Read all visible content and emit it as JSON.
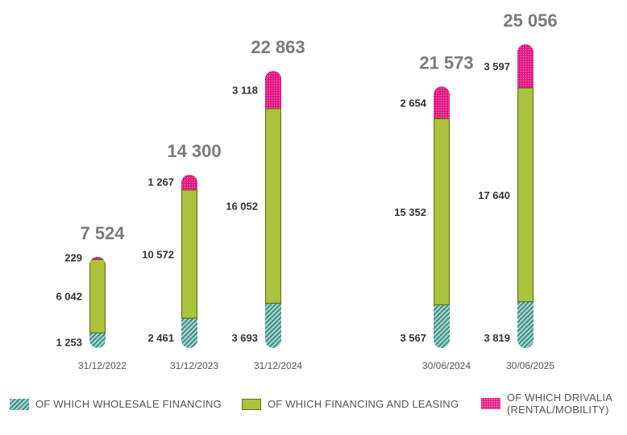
{
  "chart_data": {
    "type": "bar",
    "stacked": true,
    "title": "",
    "xlabel": "",
    "ylabel": "",
    "categories": [
      "31/12/2022",
      "31/12/2023",
      "31/12/2024",
      "30/06/2024",
      "30/06/2025"
    ],
    "totals": [
      "7 524",
      "14 300",
      "22 863",
      "21 573",
      "25 056"
    ],
    "series": [
      {
        "name": "OF WHICH WHOLESALE FINANCING",
        "values": [
          1253,
          2461,
          3693,
          3567,
          3819
        ],
        "labels": [
          "1 253",
          "2 461",
          "3 693",
          "3 567",
          "3 819"
        ],
        "color": "#3f8f86"
      },
      {
        "name": "OF WHICH FINANCING AND LEASING",
        "values": [
          6042,
          10572,
          16052,
          15352,
          17640
        ],
        "labels": [
          "6 042",
          "10 572",
          "16 052",
          "15 352",
          "17 640"
        ],
        "color": "#a9c43c"
      },
      {
        "name": "OF WHICH DRIVALIA (RENTAL/MOBILITY)",
        "values": [
          229,
          1267,
          3118,
          2654,
          3597
        ],
        "labels": [
          "229",
          "1 267",
          "3 118",
          "2 654",
          "3 597"
        ],
        "color": "#e0157f"
      }
    ]
  },
  "legend": {
    "wholesale": "OF WHICH WHOLESALE FINANCING",
    "financing": "OF WHICH FINANCING AND LEASING",
    "drivalia_line1": "OF WHICH DRIVALIA",
    "drivalia_line2": "(RENTAL/MOBILITY)"
  },
  "colors": {
    "wholesale": "#3f8f86",
    "financing": "#a9c43c",
    "drivalia": "#e0157f",
    "total_text": "#7a7a7a",
    "value_text": "#333333",
    "category_text": "#555555"
  }
}
